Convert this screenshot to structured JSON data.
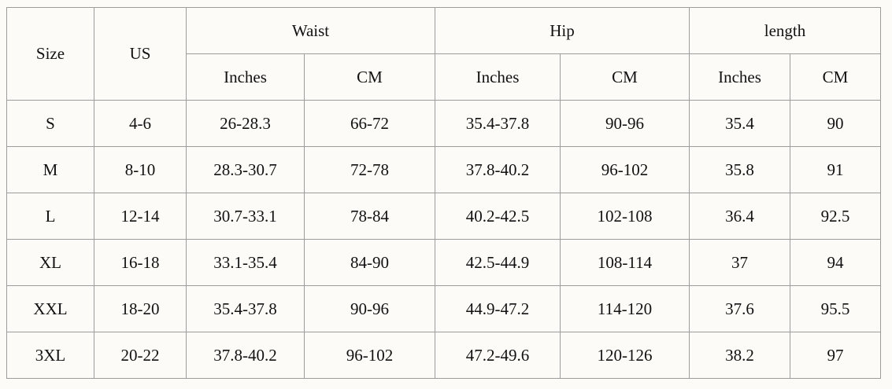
{
  "header": {
    "size": "Size",
    "us": "US",
    "groups": [
      "Waist",
      "Hip",
      "length"
    ],
    "units": [
      "Inches",
      "CM",
      "Inches",
      "CM",
      "Inches",
      "CM"
    ]
  },
  "rows": [
    [
      "S",
      "4-6",
      "26-28.3",
      "66-72",
      "35.4-37.8",
      "90-96",
      "35.4",
      "90"
    ],
    [
      "M",
      "8-10",
      "28.3-30.7",
      "72-78",
      "37.8-40.2",
      "96-102",
      "35.8",
      "91"
    ],
    [
      "L",
      "12-14",
      "30.7-33.1",
      "78-84",
      "40.2-42.5",
      "102-108",
      "36.4",
      "92.5"
    ],
    [
      "XL",
      "16-18",
      "33.1-35.4",
      "84-90",
      "42.5-44.9",
      "108-114",
      "37",
      "94"
    ],
    [
      "XXL",
      "18-20",
      "35.4-37.8",
      "90-96",
      "44.9-47.2",
      "114-120",
      "37.6",
      "95.5"
    ],
    [
      "3XL",
      "20-22",
      "37.8-40.2",
      "96-102",
      "47.2-49.6",
      "120-126",
      "38.2",
      "97"
    ]
  ]
}
